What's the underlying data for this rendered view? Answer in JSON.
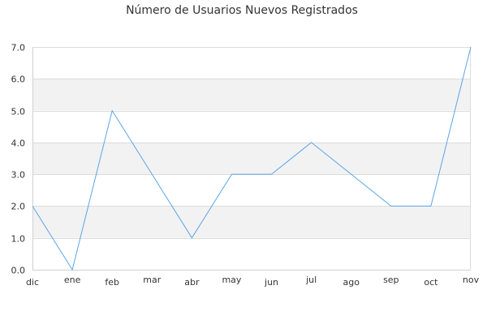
{
  "chart_data": {
    "type": "line",
    "title": "Número de Usuarios Nuevos Registrados",
    "xlabel": "",
    "ylabel": "",
    "categories": [
      "dic",
      "ene",
      "feb",
      "mar",
      "abr",
      "may",
      "jun",
      "jul",
      "ago",
      "sep",
      "oct",
      "nov"
    ],
    "series": [
      {
        "values": [
          2,
          0,
          5,
          3,
          1,
          3,
          3,
          4,
          3,
          2,
          2,
          7
        ],
        "color": "#5aa5e6"
      }
    ],
    "ylim": [
      0,
      7
    ],
    "yticks": [
      "0.0",
      "1.0",
      "2.0",
      "3.0",
      "4.0",
      "5.0",
      "6.0",
      "7.0"
    ],
    "grid": true,
    "alternating_bands": true,
    "band_color": "#f2f2f2",
    "legend": "none"
  }
}
